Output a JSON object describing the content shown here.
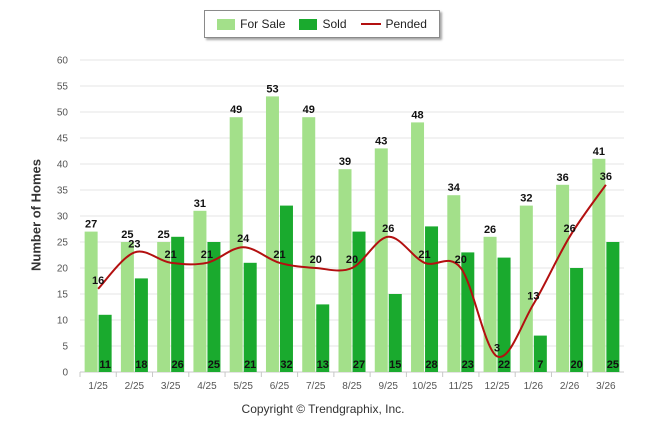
{
  "chart_data": {
    "type": "bar",
    "categories": [
      "1/25",
      "2/25",
      "3/25",
      "4/25",
      "5/25",
      "6/25",
      "7/25",
      "8/25",
      "9/25",
      "10/25",
      "11/25",
      "12/25",
      "1/26",
      "2/26",
      "3/26"
    ],
    "series": [
      {
        "name": "For Sale",
        "type": "bar",
        "color": "#a3e08a",
        "values": [
          27,
          25,
          25,
          31,
          49,
          53,
          49,
          39,
          43,
          48,
          34,
          26,
          32,
          36,
          41
        ]
      },
      {
        "name": "Sold",
        "type": "bar",
        "color": "#1aaa2e",
        "values": [
          11,
          18,
          26,
          25,
          21,
          32,
          13,
          27,
          15,
          28,
          23,
          22,
          7,
          20,
          25
        ]
      },
      {
        "name": "Pended",
        "type": "line",
        "color": "#b31010",
        "values": [
          16,
          23,
          21,
          21,
          24,
          21,
          20,
          20,
          26,
          21,
          20,
          3,
          13,
          26,
          36
        ]
      }
    ],
    "ylabel": "Number of Homes",
    "xlabel": "",
    "ylim": [
      0,
      60
    ],
    "yticks": [
      0,
      5,
      10,
      15,
      20,
      25,
      30,
      35,
      40,
      45,
      50,
      55,
      60
    ],
    "grid": true,
    "legend": "top-center"
  },
  "footer": {
    "copyright": "Copyright © Trendgraphix, Inc."
  }
}
